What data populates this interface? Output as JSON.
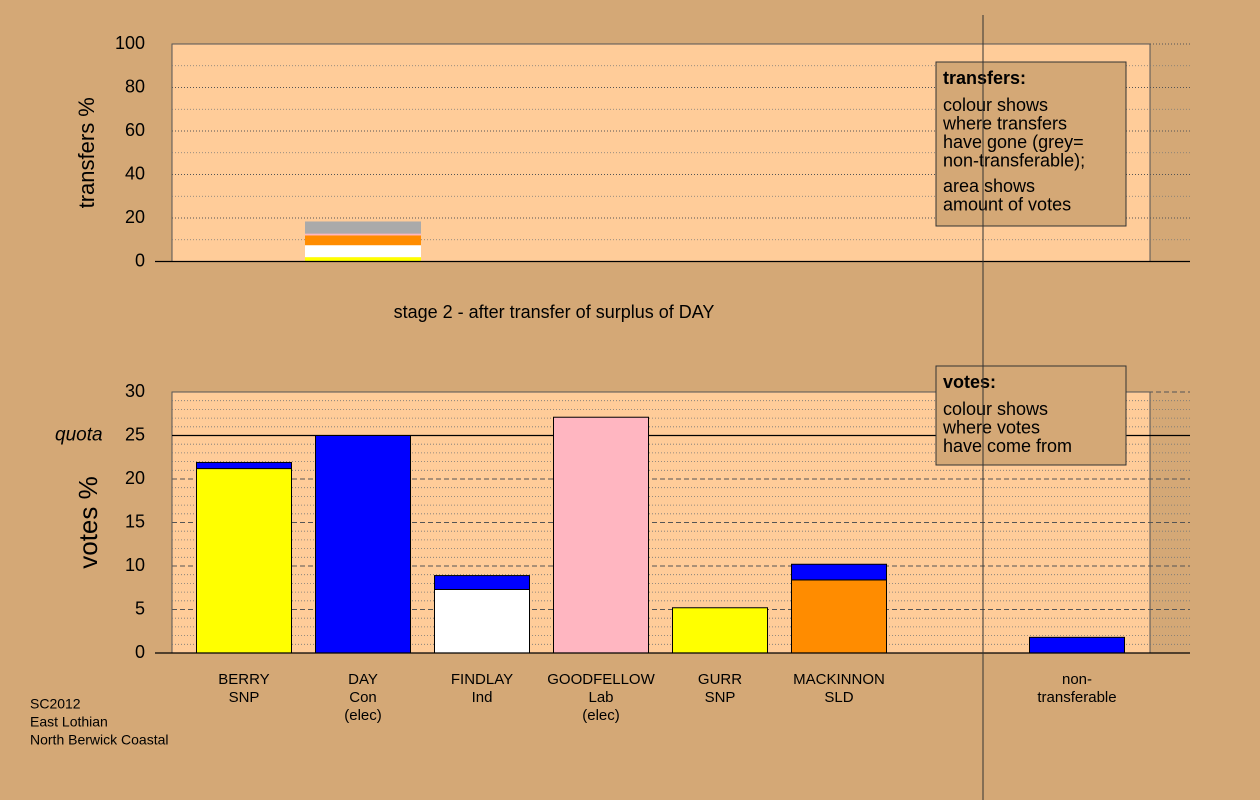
{
  "note": [
    "SC2012",
    "East Lothian",
    "North Berwick Coastal"
  ],
  "chart_data": [
    {
      "type": "bar",
      "stacked": true,
      "ylabel": "transfers %",
      "caption": "stage 2 - after transfer of surplus of DAY",
      "ylim": [
        0,
        100
      ],
      "yticks": [
        0,
        20,
        40,
        60,
        80,
        100
      ],
      "minor_yticks": [
        10,
        30,
        50,
        70,
        90
      ],
      "grid": true,
      "categories": [
        null,
        null,
        null,
        null,
        null,
        null,
        null,
        null
      ],
      "series": [
        {
          "color": "#ffff00",
          "values": [
            null,
            2,
            null,
            null,
            null,
            null,
            null,
            null
          ]
        },
        {
          "color": "#ffffff",
          "values": [
            null,
            5.5,
            null,
            null,
            null,
            null,
            null,
            null
          ]
        },
        {
          "color": "#ff8c00",
          "values": [
            null,
            4.5,
            null,
            null,
            null,
            null,
            null,
            null
          ]
        },
        {
          "color": "#ffb6c1",
          "values": [
            null,
            0.8,
            null,
            null,
            null,
            null,
            null,
            null
          ]
        },
        {
          "color": "#aaaaaa",
          "values": [
            null,
            5.6,
            null,
            null,
            null,
            null,
            null,
            null
          ]
        }
      ],
      "legend_box": {
        "title": "transfers:",
        "paragraphs": [
          [
            "colour shows",
            "where transfers",
            "have gone (grey=",
            "non-transferable);"
          ],
          [
            "area shows",
            "amount of votes"
          ]
        ]
      }
    },
    {
      "type": "bar",
      "stacked": true,
      "ylabel": "votes %",
      "ylim": [
        0,
        30
      ],
      "yticks": [
        0,
        5,
        10,
        15,
        20,
        25,
        30
      ],
      "minor_yticks": [
        1,
        2,
        3,
        4,
        6,
        7,
        8,
        9,
        11,
        12,
        13,
        14,
        16,
        17,
        18,
        19,
        21,
        22,
        23,
        24,
        26,
        27,
        28,
        29
      ],
      "grid": true,
      "quota": {
        "label": "quota",
        "value": 25
      },
      "categories": [
        [
          "BERRY",
          "SNP"
        ],
        [
          "DAY",
          "Con",
          "(elec)"
        ],
        [
          "FINDLAY",
          "Ind"
        ],
        [
          "GOODFELLOW",
          "Lab",
          "(elec)"
        ],
        [
          "GURR",
          "SNP"
        ],
        [
          "MACKINNON",
          "SLD"
        ],
        null,
        [
          "non-",
          "transferable"
        ]
      ],
      "series": [
        {
          "colors": [
            "#ffff00",
            "#0000ff",
            "#ffffff",
            "#ffb6c1",
            "#ffff00",
            "#ff8c00",
            null,
            null
          ],
          "values": [
            21.2,
            25,
            7.3,
            27.1,
            5.2,
            8.4,
            null,
            null
          ]
        },
        {
          "color": "#0000ff",
          "values": [
            0.7,
            null,
            1.6,
            null,
            null,
            1.8,
            null,
            1.8
          ]
        }
      ],
      "legend_box": {
        "title": "votes:",
        "paragraphs": [
          [
            "colour shows",
            "where votes",
            "have come from"
          ]
        ]
      }
    }
  ]
}
